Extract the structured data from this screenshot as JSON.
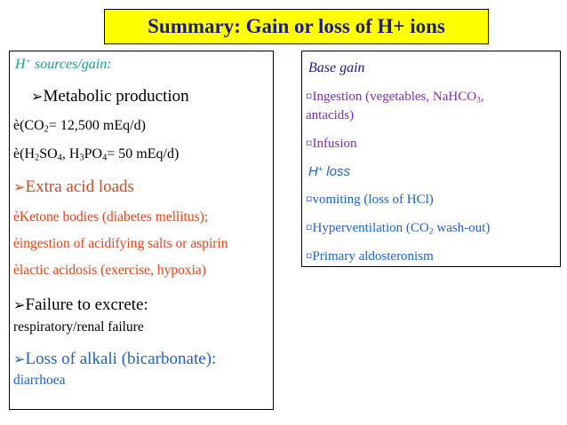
{
  "title": "Summary: Gain or loss of  H+ ions",
  "left": {
    "heading_h": "H",
    "heading_sup": "+",
    "heading_rest": " sources/gain:",
    "bullet_arrow": "➢",
    "metabolic": "Metabolic production",
    "e_char": "è",
    "co2_a": "(CO",
    "co2_sub": "2",
    "co2_b": "= 12,500 mEq/d)",
    "h2so4_a": "(H",
    "h2so4_sub1": "2",
    "h2so4_b": "SO",
    "h2so4_sub2": "4",
    "h2so4_c": ", H",
    "h2so4_sub3": "3",
    "h2so4_d": "PO",
    "h2so4_sub4": "4",
    "h2so4_e": "= 50 mEq/d)",
    "extra_acid": "Extra acid loads",
    "ketone": "Ketone bodies (diabetes mellitus);",
    "ingestion": "ingestion of acidifying salts or aspirin",
    "lactic": "lactic acidosis  (exercise, hypoxia)",
    "failure": "Failure to excrete:",
    "resp": "respiratory/renal failure",
    "loss_alkali": "Loss of alkali (bicarbonate):",
    "diarrhoea": "diarrhoea"
  },
  "right": {
    "base_gain": "Base gain",
    "bullet": "¤",
    "ingestion_a": "Ingestion (vegetables, NaHCO",
    "ingestion_sub": "3",
    "ingestion_b": ",",
    "ingestion_c": "antacids)",
    "infusion": "Infusion",
    "hloss_h": "H",
    "hloss_sup": "+",
    "hloss_rest": " loss",
    "vomiting": "vomiting (loss of HCl)",
    "hyper_a": "Hyperventilation (CO",
    "hyper_sub": "2",
    "hyper_b": " wash-out)",
    "aldo": "Primary aldosteronism"
  },
  "colors": {
    "title_bg": "#ffff00",
    "title_text": "#1a1a8c",
    "teal": "#1a9a9a",
    "red": "#e0441a",
    "blue": "#1f62c8",
    "purple": "#7b2fb0"
  }
}
